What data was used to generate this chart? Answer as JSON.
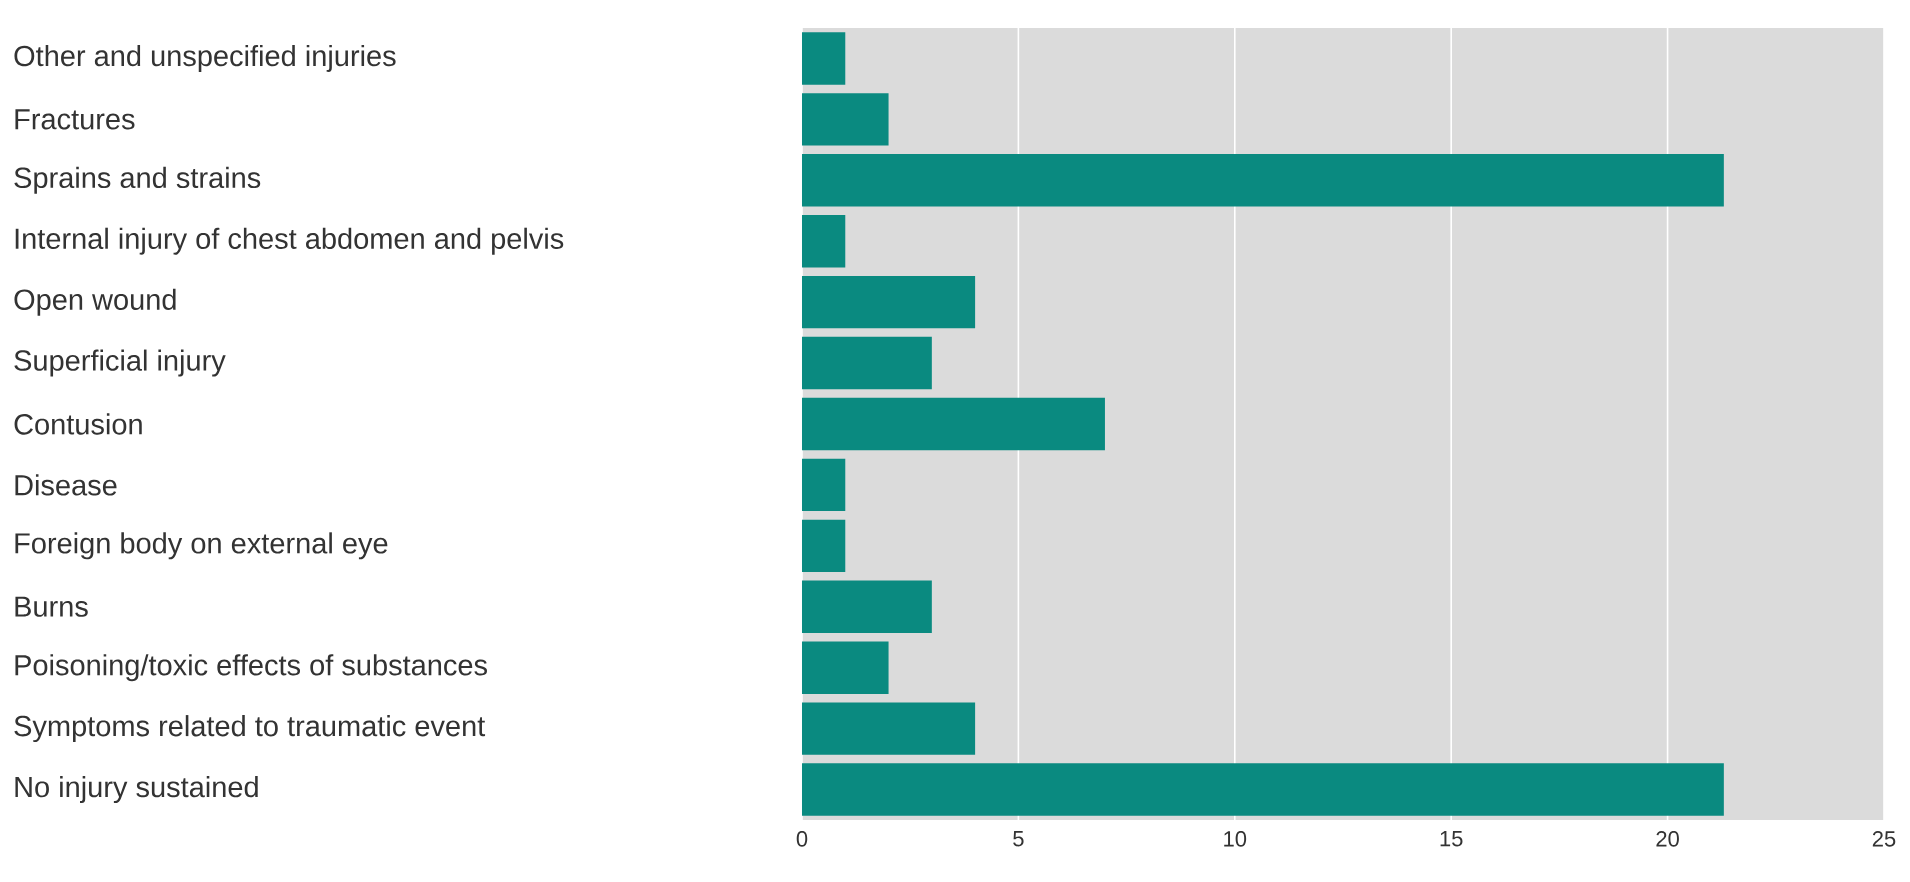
{
  "chart_data": {
    "type": "bar",
    "orientation": "horizontal",
    "categories": [
      "Other and unspecified injuries",
      "Fractures",
      "Sprains and strains",
      "Internal injury of chest abdomen and pelvis",
      "Open wound",
      "Superficial injury",
      "Contusion",
      "Disease",
      "Foreign body on external eye",
      "Burns",
      "Poisoning/toxic effects of substances",
      "Symptoms related to traumatic event",
      "No injury sustained"
    ],
    "values": [
      1,
      2,
      21.3,
      1,
      4,
      3,
      7,
      1,
      1,
      3,
      2,
      4,
      21.3
    ],
    "color": "#0a8a80",
    "xlim": [
      0,
      25
    ],
    "xticks": [
      0,
      5,
      10,
      15,
      20,
      25
    ],
    "grid": "x"
  }
}
